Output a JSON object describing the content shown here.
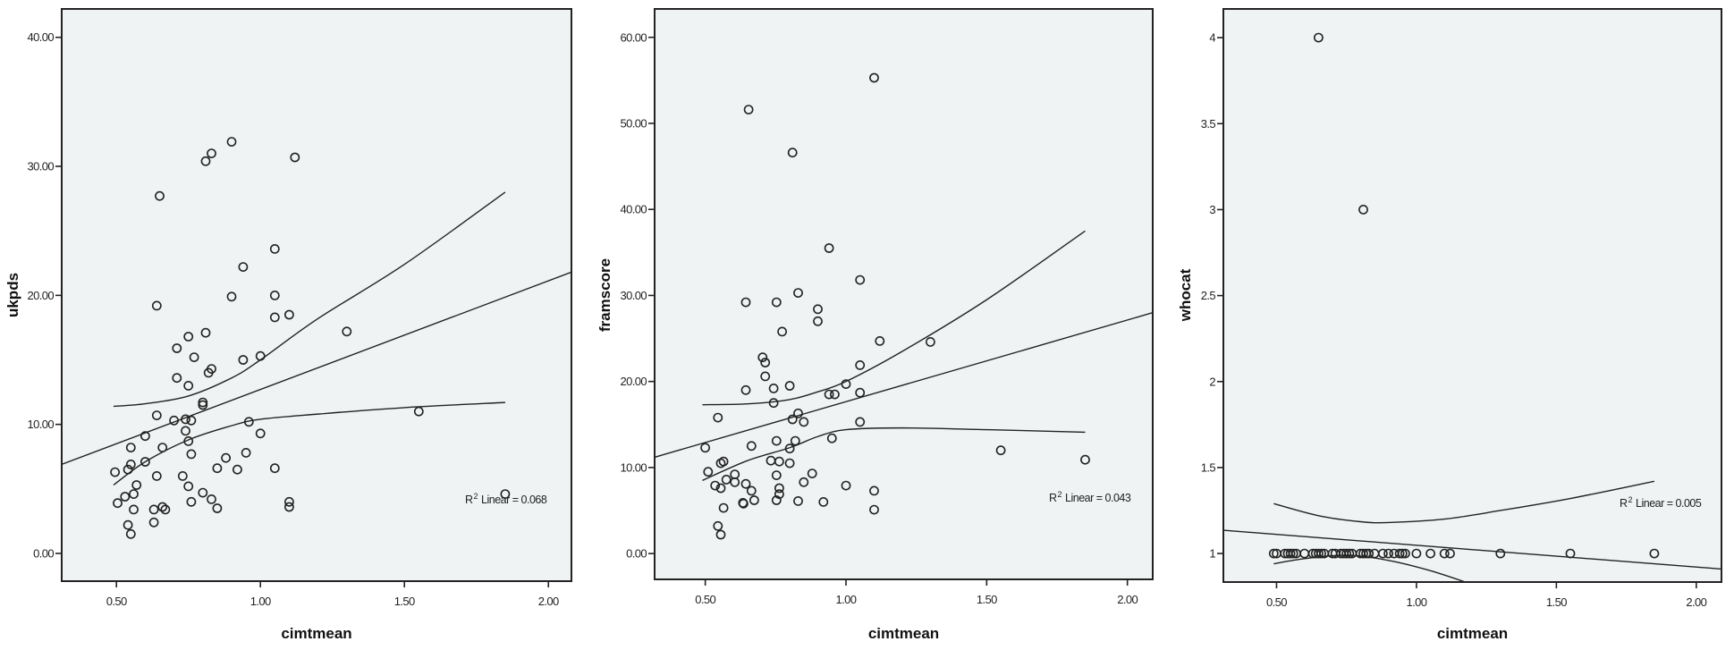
{
  "chart_data": [
    {
      "type": "scatter",
      "title": "",
      "xlabel": "cimtmean",
      "ylabel": "ukpds",
      "x_range": [
        0.31,
        2.08
      ],
      "y_range": [
        -2.15,
        42.2
      ],
      "grid": false,
      "x_ticks": [
        {
          "value": 0.5,
          "label": "0.50"
        },
        {
          "value": 1.0,
          "label": "1.00"
        },
        {
          "value": 1.5,
          "label": "1.50"
        },
        {
          "value": 2.0,
          "label": "2.00"
        }
      ],
      "y_ticks": [
        {
          "value": 0,
          "label": "0.00"
        },
        {
          "value": 10,
          "label": "10.00"
        },
        {
          "value": 20,
          "label": "20.00"
        },
        {
          "value": 30,
          "label": "30.00"
        },
        {
          "value": 40,
          "label": "40.00"
        }
      ],
      "points": [
        [
          0.495,
          6.3
        ],
        [
          0.504,
          3.9
        ],
        [
          0.53,
          4.4
        ],
        [
          0.54,
          6.5
        ],
        [
          0.55,
          8.2
        ],
        [
          0.55,
          6.9
        ],
        [
          0.54,
          2.2
        ],
        [
          0.55,
          1.5
        ],
        [
          0.56,
          4.6
        ],
        [
          0.56,
          3.4
        ],
        [
          0.57,
          5.3
        ],
        [
          0.6,
          9.1
        ],
        [
          0.6,
          7.1
        ],
        [
          0.63,
          3.4
        ],
        [
          0.63,
          2.4
        ],
        [
          0.64,
          10.7
        ],
        [
          0.64,
          6.0
        ],
        [
          0.64,
          19.2
        ],
        [
          0.65,
          27.7
        ],
        [
          0.66,
          8.2
        ],
        [
          0.66,
          3.6
        ],
        [
          0.67,
          3.4
        ],
        [
          0.7,
          10.3
        ],
        [
          0.71,
          15.9
        ],
        [
          0.71,
          13.6
        ],
        [
          0.73,
          6.0
        ],
        [
          0.74,
          10.4
        ],
        [
          0.74,
          9.5
        ],
        [
          0.75,
          16.8
        ],
        [
          0.75,
          13.0
        ],
        [
          0.75,
          8.7
        ],
        [
          0.75,
          5.2
        ],
        [
          0.76,
          10.3
        ],
        [
          0.76,
          7.7
        ],
        [
          0.76,
          4.0
        ],
        [
          0.77,
          15.2
        ],
        [
          0.8,
          11.7
        ],
        [
          0.8,
          11.5
        ],
        [
          0.8,
          4.7
        ],
        [
          0.81,
          17.1
        ],
        [
          0.81,
          30.4
        ],
        [
          0.82,
          14.0
        ],
        [
          0.83,
          31.0
        ],
        [
          0.83,
          14.3
        ],
        [
          0.83,
          4.2
        ],
        [
          0.85,
          6.6
        ],
        [
          0.85,
          3.5
        ],
        [
          0.88,
          7.4
        ],
        [
          0.9,
          31.9
        ],
        [
          0.9,
          19.9
        ],
        [
          0.92,
          6.5
        ],
        [
          0.94,
          22.2
        ],
        [
          0.94,
          15.0
        ],
        [
          0.95,
          7.8
        ],
        [
          0.96,
          10.2
        ],
        [
          1.0,
          15.3
        ],
        [
          1.0,
          9.3
        ],
        [
          1.05,
          23.6
        ],
        [
          1.05,
          20.0
        ],
        [
          1.05,
          18.3
        ],
        [
          1.05,
          6.6
        ],
        [
          1.1,
          18.5
        ],
        [
          1.1,
          4.0
        ],
        [
          1.1,
          3.6
        ],
        [
          1.12,
          30.7
        ],
        [
          1.3,
          17.2
        ],
        [
          1.55,
          11.0
        ],
        [
          1.85,
          4.6
        ]
      ],
      "fit_line": [
        [
          0.31,
          6.9
        ],
        [
          2.08,
          21.8
        ]
      ],
      "ci_upper": [
        [
          0.49,
          11.4
        ],
        [
          0.6,
          11.6
        ],
        [
          0.75,
          12.2
        ],
        [
          0.9,
          13.6
        ],
        [
          1.0,
          15.0
        ],
        [
          1.2,
          18.2
        ],
        [
          1.5,
          22.4
        ],
        [
          1.85,
          28.0
        ]
      ],
      "ci_lower": [
        [
          0.49,
          5.3
        ],
        [
          0.6,
          7.1
        ],
        [
          0.75,
          8.8
        ],
        [
          0.9,
          9.9
        ],
        [
          1.0,
          10.4
        ],
        [
          1.2,
          10.8
        ],
        [
          1.5,
          11.3
        ],
        [
          1.85,
          11.7
        ]
      ],
      "r2": {
        "prefix": "R",
        "sup": "2",
        "text": " Linear = 0.068"
      }
    },
    {
      "type": "scatter",
      "title": "",
      "xlabel": "cimtmean",
      "ylabel": "framscore",
      "x_range": [
        0.32,
        2.09
      ],
      "y_range": [
        -3.0,
        63.3
      ],
      "grid": false,
      "x_ticks": [
        {
          "value": 0.5,
          "label": "0.50"
        },
        {
          "value": 1.0,
          "label": "1.00"
        },
        {
          "value": 1.5,
          "label": "1.50"
        },
        {
          "value": 2.0,
          "label": "2.00"
        }
      ],
      "y_ticks": [
        {
          "value": 0,
          "label": "0.00"
        },
        {
          "value": 10,
          "label": "10.00"
        },
        {
          "value": 20,
          "label": "20.00"
        },
        {
          "value": 30,
          "label": "30.00"
        },
        {
          "value": 40,
          "label": "40.00"
        },
        {
          "value": 50,
          "label": "50.00"
        },
        {
          "value": 60,
          "label": "60.00"
        }
      ],
      "points": [
        [
          0.5,
          12.3
        ],
        [
          0.51,
          9.5
        ],
        [
          0.535,
          7.9
        ],
        [
          0.545,
          15.8
        ],
        [
          0.555,
          10.5
        ],
        [
          0.555,
          7.6
        ],
        [
          0.545,
          3.2
        ],
        [
          0.555,
          2.2
        ],
        [
          0.565,
          10.7
        ],
        [
          0.565,
          5.3
        ],
        [
          0.575,
          8.6
        ],
        [
          0.605,
          9.2
        ],
        [
          0.605,
          8.3
        ],
        [
          0.634,
          5.9
        ],
        [
          0.636,
          5.8
        ],
        [
          0.644,
          29.2
        ],
        [
          0.644,
          19.0
        ],
        [
          0.644,
          8.1
        ],
        [
          0.654,
          51.6
        ],
        [
          0.664,
          12.5
        ],
        [
          0.664,
          7.3
        ],
        [
          0.674,
          6.2
        ],
        [
          0.704,
          22.8
        ],
        [
          0.713,
          22.2
        ],
        [
          0.713,
          20.6
        ],
        [
          0.733,
          10.8
        ],
        [
          0.743,
          19.2
        ],
        [
          0.743,
          17.5
        ],
        [
          0.753,
          29.2
        ],
        [
          0.753,
          13.1
        ],
        [
          0.753,
          9.1
        ],
        [
          0.753,
          6.2
        ],
        [
          0.763,
          10.7
        ],
        [
          0.763,
          7.6
        ],
        [
          0.763,
          6.9
        ],
        [
          0.773,
          25.8
        ],
        [
          0.8,
          19.5
        ],
        [
          0.8,
          12.2
        ],
        [
          0.8,
          10.5
        ],
        [
          0.81,
          46.6
        ],
        [
          0.81,
          15.6
        ],
        [
          0.82,
          13.1
        ],
        [
          0.83,
          30.3
        ],
        [
          0.83,
          16.3
        ],
        [
          0.83,
          6.1
        ],
        [
          0.85,
          15.3
        ],
        [
          0.85,
          8.3
        ],
        [
          0.88,
          9.3
        ],
        [
          0.9,
          28.4
        ],
        [
          0.9,
          27.0
        ],
        [
          0.92,
          6.0
        ],
        [
          0.94,
          35.5
        ],
        [
          0.94,
          18.5
        ],
        [
          0.95,
          13.4
        ],
        [
          0.96,
          18.5
        ],
        [
          1.0,
          19.7
        ],
        [
          1.0,
          7.9
        ],
        [
          1.05,
          31.8
        ],
        [
          1.05,
          21.9
        ],
        [
          1.05,
          18.7
        ],
        [
          1.05,
          15.3
        ],
        [
          1.1,
          55.3
        ],
        [
          1.1,
          7.3
        ],
        [
          1.1,
          5.1
        ],
        [
          1.12,
          24.7
        ],
        [
          1.3,
          24.6
        ],
        [
          1.55,
          12.0
        ],
        [
          1.85,
          10.9
        ]
      ],
      "fit_line": [
        [
          0.32,
          11.2
        ],
        [
          2.09,
          28.0
        ]
      ],
      "ci_upper": [
        [
          0.49,
          17.3
        ],
        [
          0.65,
          17.4
        ],
        [
          0.8,
          17.9
        ],
        [
          0.9,
          18.8
        ],
        [
          1.0,
          20.0
        ],
        [
          1.2,
          23.5
        ],
        [
          1.5,
          29.5
        ],
        [
          1.85,
          37.5
        ]
      ],
      "ci_lower": [
        [
          0.49,
          8.5
        ],
        [
          0.65,
          10.8
        ],
        [
          0.8,
          12.3
        ],
        [
          0.9,
          13.6
        ],
        [
          1.0,
          14.4
        ],
        [
          1.2,
          14.6
        ],
        [
          1.5,
          14.4
        ],
        [
          1.85,
          14.1
        ]
      ],
      "r2": {
        "prefix": "R",
        "sup": "2",
        "text": " Linear = 0.043"
      }
    },
    {
      "type": "scatter",
      "title": "",
      "xlabel": "cimtmean",
      "ylabel": "whocat",
      "x_range": [
        0.31,
        2.09
      ],
      "y_range": [
        0.834,
        4.167
      ],
      "grid": false,
      "x_ticks": [
        {
          "value": 0.5,
          "label": "0.50"
        },
        {
          "value": 1.0,
          "label": "1.00"
        },
        {
          "value": 1.5,
          "label": "1.50"
        },
        {
          "value": 2.0,
          "label": "2.00"
        }
      ],
      "y_ticks": [
        {
          "value": 1,
          "label": "1"
        },
        {
          "value": 1.5,
          "label": "1.5"
        },
        {
          "value": 2,
          "label": "2"
        },
        {
          "value": 2.5,
          "label": "2.5"
        },
        {
          "value": 3,
          "label": "3"
        },
        {
          "value": 3.5,
          "label": "3.5"
        },
        {
          "value": 4,
          "label": "4"
        }
      ],
      "points": [
        [
          0.49,
          1
        ],
        [
          0.5,
          1
        ],
        [
          0.53,
          1
        ],
        [
          0.54,
          1
        ],
        [
          0.55,
          1
        ],
        [
          0.56,
          1
        ],
        [
          0.57,
          1
        ],
        [
          0.6,
          1
        ],
        [
          0.63,
          1
        ],
        [
          0.64,
          1
        ],
        [
          0.65,
          1
        ],
        [
          0.66,
          1
        ],
        [
          0.67,
          1
        ],
        [
          0.7,
          1
        ],
        [
          0.71,
          1
        ],
        [
          0.73,
          1
        ],
        [
          0.74,
          1
        ],
        [
          0.75,
          1
        ],
        [
          0.76,
          1
        ],
        [
          0.77,
          1
        ],
        [
          0.8,
          1
        ],
        [
          0.81,
          1
        ],
        [
          0.82,
          1
        ],
        [
          0.83,
          1
        ],
        [
          0.85,
          1
        ],
        [
          0.88,
          1
        ],
        [
          0.9,
          1
        ],
        [
          0.92,
          1
        ],
        [
          0.94,
          1
        ],
        [
          0.95,
          1
        ],
        [
          0.96,
          1
        ],
        [
          1.0,
          1
        ],
        [
          1.05,
          1
        ],
        [
          1.1,
          1
        ],
        [
          1.12,
          1
        ],
        [
          1.3,
          1
        ],
        [
          1.55,
          1
        ],
        [
          1.85,
          1
        ],
        [
          0.65,
          4
        ],
        [
          0.81,
          3
        ]
      ],
      "fit_line": [
        [
          0.31,
          1.135
        ],
        [
          2.09,
          0.91
        ]
      ],
      "ci_upper": [
        [
          0.49,
          1.29
        ],
        [
          0.65,
          1.22
        ],
        [
          0.8,
          1.185
        ],
        [
          0.9,
          1.18
        ],
        [
          1.1,
          1.2
        ],
        [
          1.3,
          1.25
        ],
        [
          1.55,
          1.32
        ],
        [
          1.85,
          1.42
        ]
      ],
      "ci_lower": [
        [
          0.49,
          0.94
        ],
        [
          0.6,
          0.97
        ],
        [
          0.75,
          0.99
        ],
        [
          0.9,
          0.96
        ],
        [
          1.05,
          0.9
        ],
        [
          1.2,
          0.82
        ]
      ],
      "r2": {
        "prefix": "R",
        "sup": "2",
        "text": " Linear = 0.005"
      }
    }
  ]
}
